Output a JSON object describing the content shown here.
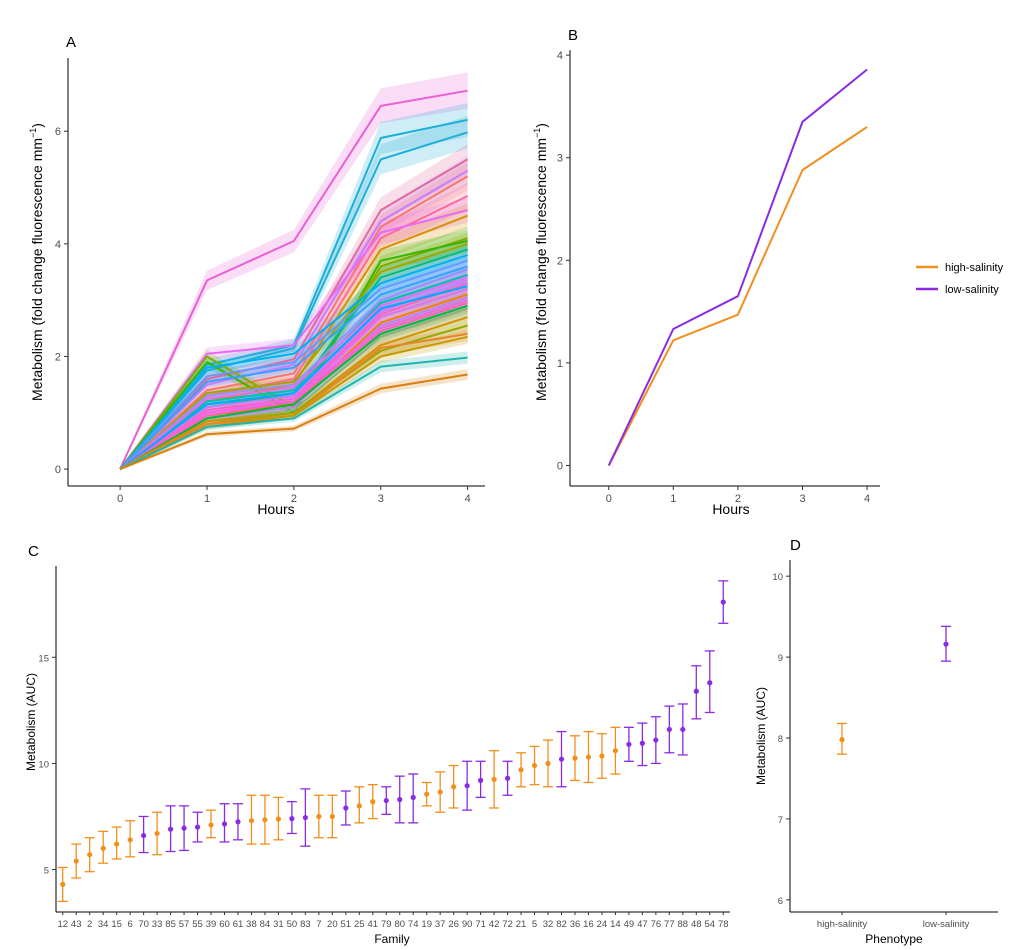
{
  "colors": {
    "high": "#F28E1C",
    "low": "#8A2BE2",
    "high_dark": "#D87F0E",
    "low_dark": "#8A2BE2"
  },
  "legend": {
    "entries": [
      {
        "label": "high-salinity",
        "color": "#F28E1C"
      },
      {
        "label": "low-salinity",
        "color": "#8A2BE2"
      }
    ],
    "placement": "right"
  },
  "chart_data": [
    {
      "panel": "A",
      "type": "line",
      "xlabel": "Hours",
      "ylabel": "Metabolism (fold change fluorescence mm",
      "ylabel_sup": "−1",
      "ylabel_close": ")",
      "x": [
        0,
        1,
        2,
        3,
        4
      ],
      "xticks": [
        "0",
        "1",
        "2",
        "3",
        "4"
      ],
      "yticks": [
        "0",
        "2",
        "4",
        "6"
      ],
      "xlim": [
        -0.6,
        4.2
      ],
      "ylim": [
        -0.3,
        7.3
      ],
      "ribbons": true,
      "series": [
        {
          "color": "#E85FD6",
          "values": [
            0,
            3.35,
            4.05,
            6.45,
            6.72
          ]
        },
        {
          "color": "#1FAFD6",
          "values": [
            0,
            1.85,
            2.2,
            5.88,
            6.2
          ]
        },
        {
          "color": "#1FAFD6",
          "values": [
            0,
            1.75,
            2.15,
            5.5,
            5.98
          ]
        },
        {
          "color": "#E06A9A",
          "values": [
            0,
            1.6,
            1.95,
            4.6,
            5.5
          ]
        },
        {
          "color": "#C77CFF",
          "values": [
            0,
            1.5,
            1.85,
            4.4,
            5.3
          ]
        },
        {
          "color": "#F8766D",
          "values": [
            0,
            1.4,
            1.7,
            4.3,
            5.2
          ]
        },
        {
          "color": "#FF6C91",
          "values": [
            0,
            1.3,
            1.6,
            4.1,
            4.85
          ]
        },
        {
          "color": "#E76BF3",
          "values": [
            0,
            2.05,
            2.2,
            4.2,
            4.6
          ]
        },
        {
          "color": "#D89000",
          "values": [
            0,
            1.2,
            1.5,
            3.9,
            4.5
          ]
        },
        {
          "color": "#7CAE00",
          "values": [
            0,
            2.0,
            1.1,
            3.6,
            4.1
          ]
        },
        {
          "color": "#39B600",
          "values": [
            0,
            1.9,
            1.0,
            3.7,
            4.05
          ]
        },
        {
          "color": "#A3A500",
          "values": [
            0,
            1.35,
            1.55,
            3.5,
            4.0
          ]
        },
        {
          "color": "#00BF7D",
          "values": [
            0,
            1.1,
            1.35,
            3.4,
            3.9
          ]
        },
        {
          "color": "#00B0F6",
          "values": [
            0,
            1.8,
            2.05,
            3.3,
            3.8
          ]
        },
        {
          "color": "#619CFF",
          "values": [
            0,
            1.65,
            1.9,
            3.2,
            3.7
          ]
        },
        {
          "color": "#35A2FF",
          "values": [
            0,
            1.55,
            1.8,
            3.1,
            3.6
          ]
        },
        {
          "color": "#9590FF",
          "values": [
            0,
            1.3,
            1.5,
            3.0,
            3.55
          ]
        },
        {
          "color": "#00C1AA",
          "values": [
            0,
            1.2,
            1.4,
            2.95,
            3.45
          ]
        },
        {
          "color": "#E76BF3",
          "values": [
            0,
            1.25,
            1.45,
            2.9,
            3.4
          ]
        },
        {
          "color": "#C77CFF",
          "values": [
            0,
            1.1,
            1.3,
            2.8,
            3.35
          ]
        },
        {
          "color": "#FF62BC",
          "values": [
            0,
            1.05,
            1.25,
            2.75,
            3.3
          ]
        },
        {
          "color": "#00A9FF",
          "values": [
            0,
            1.15,
            1.35,
            2.85,
            3.25
          ]
        },
        {
          "color": "#DB72FB",
          "values": [
            0,
            1.0,
            1.2,
            2.7,
            3.2
          ]
        },
        {
          "color": "#E58700",
          "values": [
            0,
            0.95,
            1.15,
            2.6,
            3.1
          ]
        },
        {
          "color": "#B983FF",
          "values": [
            0,
            0.9,
            1.1,
            2.55,
            3.05
          ]
        },
        {
          "color": "#F564E3",
          "values": [
            0,
            1.0,
            1.25,
            2.5,
            3.0
          ]
        },
        {
          "color": "#FF61C3",
          "values": [
            0,
            0.95,
            1.2,
            2.45,
            2.95
          ]
        },
        {
          "color": "#00BA38",
          "values": [
            0,
            0.9,
            1.15,
            2.4,
            2.9
          ]
        },
        {
          "color": "#8AB17D",
          "values": [
            0,
            0.85,
            1.05,
            2.35,
            2.85
          ]
        },
        {
          "color": "#D39200",
          "values": [
            0,
            0.85,
            1.0,
            2.2,
            2.7
          ]
        },
        {
          "color": "#93AA00",
          "values": [
            0,
            0.8,
            1.0,
            2.1,
            2.55
          ]
        },
        {
          "color": "#E9842C",
          "values": [
            0,
            0.8,
            0.95,
            2.15,
            2.4
          ]
        },
        {
          "color": "#C49A00",
          "values": [
            0,
            0.75,
            0.95,
            2.0,
            2.35
          ]
        },
        {
          "color": "#1FB5AD",
          "values": [
            0,
            0.75,
            0.9,
            1.82,
            1.98
          ]
        },
        {
          "color": "#D87F0E",
          "values": [
            0,
            0.62,
            0.72,
            1.43,
            1.68
          ]
        }
      ]
    },
    {
      "panel": "B",
      "type": "line",
      "xlabel": "Hours",
      "ylabel": "Metabolism (fold change fluorescence mm",
      "ylabel_sup": "−1",
      "ylabel_close": ")",
      "x": [
        0,
        1,
        2,
        3,
        4
      ],
      "xticks": [
        "0",
        "1",
        "2",
        "3",
        "4"
      ],
      "yticks": [
        "0",
        "1",
        "2",
        "3",
        "4"
      ],
      "xlim": [
        -0.6,
        4.2
      ],
      "ylim": [
        -0.2,
        4.05
      ],
      "series": [
        {
          "name": "high-salinity",
          "color": "#F28E1C",
          "values": [
            0,
            1.22,
            1.47,
            2.88,
            3.3
          ]
        },
        {
          "name": "low-salinity",
          "color": "#8A2BE2",
          "values": [
            0,
            1.33,
            1.65,
            3.35,
            3.86
          ]
        }
      ]
    },
    {
      "panel": "C",
      "type": "scatter",
      "xlabel": "Family",
      "ylabel": "Metabolism (AUC)",
      "yticks": [
        "5",
        "10",
        "15"
      ],
      "ylim": [
        3.0,
        19.3
      ],
      "categories": [
        "12",
        "43",
        "2",
        "34",
        "15",
        "6",
        "70",
        "33",
        "85",
        "57",
        "55",
        "39",
        "60",
        "61",
        "38",
        "84",
        "31",
        "50",
        "83",
        "7",
        "20",
        "51",
        "25",
        "41",
        "79",
        "80",
        "74",
        "19",
        "37",
        "26",
        "90",
        "71",
        "42",
        "72",
        "21",
        "5",
        "32",
        "82",
        "36",
        "16",
        "24",
        "14",
        "49",
        "47",
        "76",
        "77",
        "88",
        "48",
        "54",
        "78"
      ],
      "groups": [
        "high",
        "high",
        "high",
        "high",
        "high",
        "high",
        "low",
        "high",
        "low",
        "low",
        "low",
        "high",
        "low",
        "low",
        "high",
        "high",
        "high",
        "low",
        "low",
        "high",
        "high",
        "low",
        "high",
        "high",
        "low",
        "low",
        "low",
        "high",
        "high",
        "high",
        "low",
        "low",
        "high",
        "low",
        "high",
        "high",
        "high",
        "low",
        "high",
        "high",
        "high",
        "high",
        "low",
        "low",
        "low",
        "low",
        "low",
        "low",
        "low",
        "low"
      ],
      "means": [
        4.3,
        5.4,
        5.7,
        6.0,
        6.2,
        6.4,
        6.6,
        6.7,
        6.9,
        6.95,
        7.0,
        7.1,
        7.15,
        7.25,
        7.3,
        7.35,
        7.38,
        7.4,
        7.45,
        7.5,
        7.5,
        7.9,
        8.0,
        8.2,
        8.25,
        8.3,
        8.4,
        8.55,
        8.65,
        8.9,
        8.95,
        9.2,
        9.25,
        9.3,
        9.7,
        9.9,
        10.0,
        10.2,
        10.25,
        10.3,
        10.35,
        10.6,
        10.9,
        10.95,
        11.1,
        11.6,
        11.6,
        13.4,
        13.8,
        17.6
      ],
      "lower": [
        3.5,
        4.6,
        4.9,
        5.3,
        5.5,
        5.6,
        5.8,
        5.7,
        5.85,
        5.9,
        6.3,
        6.5,
        6.3,
        6.4,
        6.2,
        6.2,
        6.4,
        6.7,
        6.1,
        6.5,
        6.5,
        7.1,
        7.2,
        7.4,
        7.6,
        7.2,
        7.2,
        8.0,
        7.7,
        7.9,
        7.8,
        8.4,
        7.9,
        8.5,
        8.9,
        9.0,
        8.9,
        8.9,
        9.2,
        9.1,
        9.3,
        9.5,
        10.1,
        9.9,
        10.0,
        10.5,
        10.4,
        12.1,
        12.4,
        16.6
      ],
      "upper": [
        5.1,
        6.2,
        6.5,
        6.8,
        7.0,
        7.3,
        7.5,
        7.7,
        8.0,
        8.0,
        7.7,
        7.8,
        8.1,
        8.1,
        8.5,
        8.5,
        8.4,
        8.2,
        8.8,
        8.5,
        8.5,
        8.7,
        8.9,
        9.0,
        8.9,
        9.4,
        9.5,
        9.1,
        9.6,
        9.9,
        10.1,
        10.1,
        10.6,
        10.1,
        10.5,
        10.8,
        11.1,
        11.5,
        11.3,
        11.5,
        11.4,
        11.7,
        11.7,
        11.9,
        12.2,
        12.7,
        12.8,
        14.6,
        15.3,
        18.6
      ]
    },
    {
      "panel": "D",
      "type": "scatter",
      "xlabel": "Phenotype",
      "ylabel": "Metabolism (AUC)",
      "categories": [
        "high-salinity",
        "low-salinity"
      ],
      "yticks": [
        "6",
        "7",
        "8",
        "9",
        "10"
      ],
      "ylim": [
        5.85,
        10.2
      ],
      "means": [
        7.98,
        9.16
      ],
      "lower": [
        7.8,
        8.95
      ],
      "upper": [
        8.18,
        9.38
      ]
    }
  ]
}
